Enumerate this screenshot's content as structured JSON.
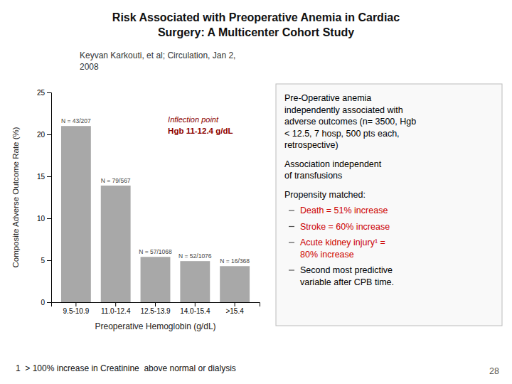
{
  "chart_data": {
    "type": "bar",
    "title": "Risk Associated with Preoperative Anemia in Cardiac\nSurgery: A Multicenter Cohort Study",
    "subtitle": "Keyvan Karkouti, et al; Circulation, Jan 2,\n2008",
    "x_label": "Preoperative Hemoglobin (g/dL)",
    "y_label": "Composite Adverse Outcome Rate (%)",
    "categories": [
      "9.5-10.9",
      "11.0-12.4",
      "12.5-13.9",
      "14.0-15.4",
      ">15.4"
    ],
    "values": [
      21.0,
      13.9,
      5.4,
      4.9,
      4.3
    ],
    "color": "#a8a8a8",
    "ylim": [
      0,
      25
    ],
    "yticks": [
      0,
      5,
      10,
      15,
      20,
      25
    ],
    "grid": false,
    "n_labels": [
      "N = 43/207",
      "N = 79/567",
      "N = 57/1068",
      "N = 52/1076",
      "N = 16/368"
    ],
    "annotations": [
      {
        "text": "Inflection point",
        "color": "#8b0000"
      },
      {
        "text": "Hgb 11-12.4 g/dL",
        "color": "#8b0000"
      }
    ],
    "notes": [
      "Pre-Operative anemia\nindependently associated with\nadverse outcomes (n= 3500, Hgb\n< 12.5, 7 hosp, 500 pts each,\nretrospective)",
      "Association independent\nof transfusions",
      "Propensity matched:"
    ],
    "note_items": [
      {
        "text": "Death = 51% increase",
        "color": "#cc0000"
      },
      {
        "text": "Stroke = 60% increase",
        "color": "#cc0000"
      },
      {
        "text": "Acute kidney injury¹ =\n80% increase",
        "color": "#cc0000"
      },
      {
        "text": "Second most predictive\nvariable after CPB time.",
        "color": "#000000"
      }
    ],
    "footnote": "1  > 100% increase in Creatinine  above normal or dialysis",
    "page_number": "28"
  }
}
